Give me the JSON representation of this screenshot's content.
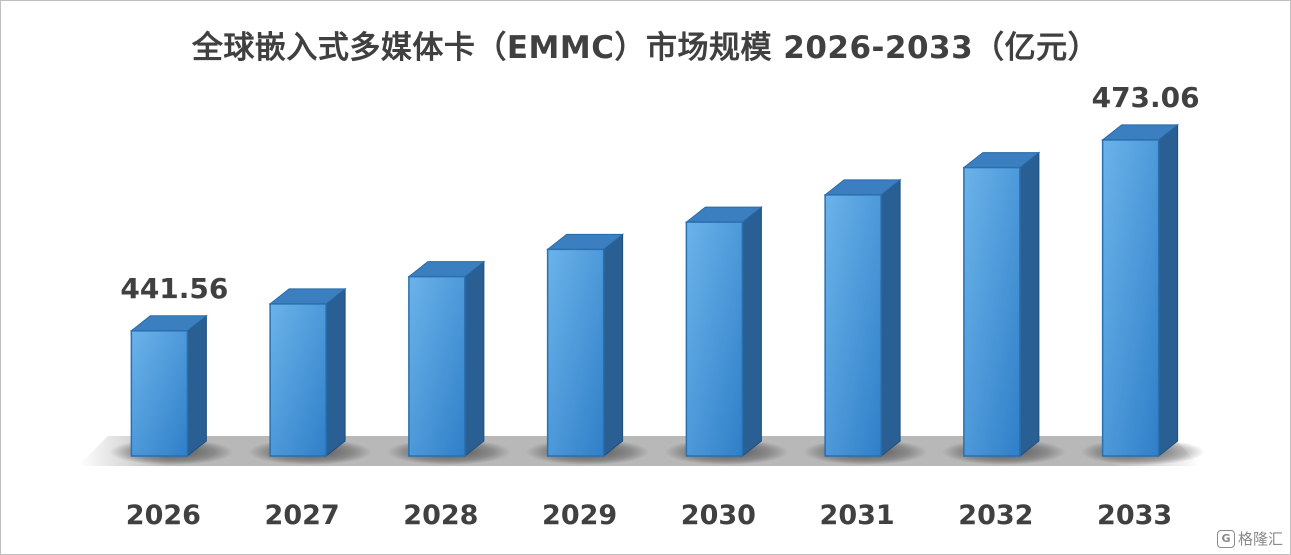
{
  "chart_data": {
    "type": "bar",
    "title": "全球嵌入式多媒体卡（EMMC）市场规模 2026-2033（亿元）",
    "categories": [
      "2026",
      "2027",
      "2028",
      "2029",
      "2030",
      "2031",
      "2032",
      "2033"
    ],
    "values": [
      441.56,
      446.0,
      450.5,
      455.0,
      459.5,
      464.0,
      468.5,
      473.06
    ],
    "data_labels": [
      "441.56",
      "",
      "",
      "",
      "",
      "",
      "",
      "473.06"
    ],
    "xlabel": "",
    "ylabel": "",
    "ylim": [
      420.9,
      478
    ],
    "grid": false,
    "legend": "none",
    "bar_color": "#4a9be0",
    "bar_side_color": "#2a5f93",
    "bar_top_color": "#3b7fc0"
  },
  "watermark": {
    "icon": "G",
    "text": "格隆汇",
    "icon_name": "gelonghui-logo-icon"
  }
}
